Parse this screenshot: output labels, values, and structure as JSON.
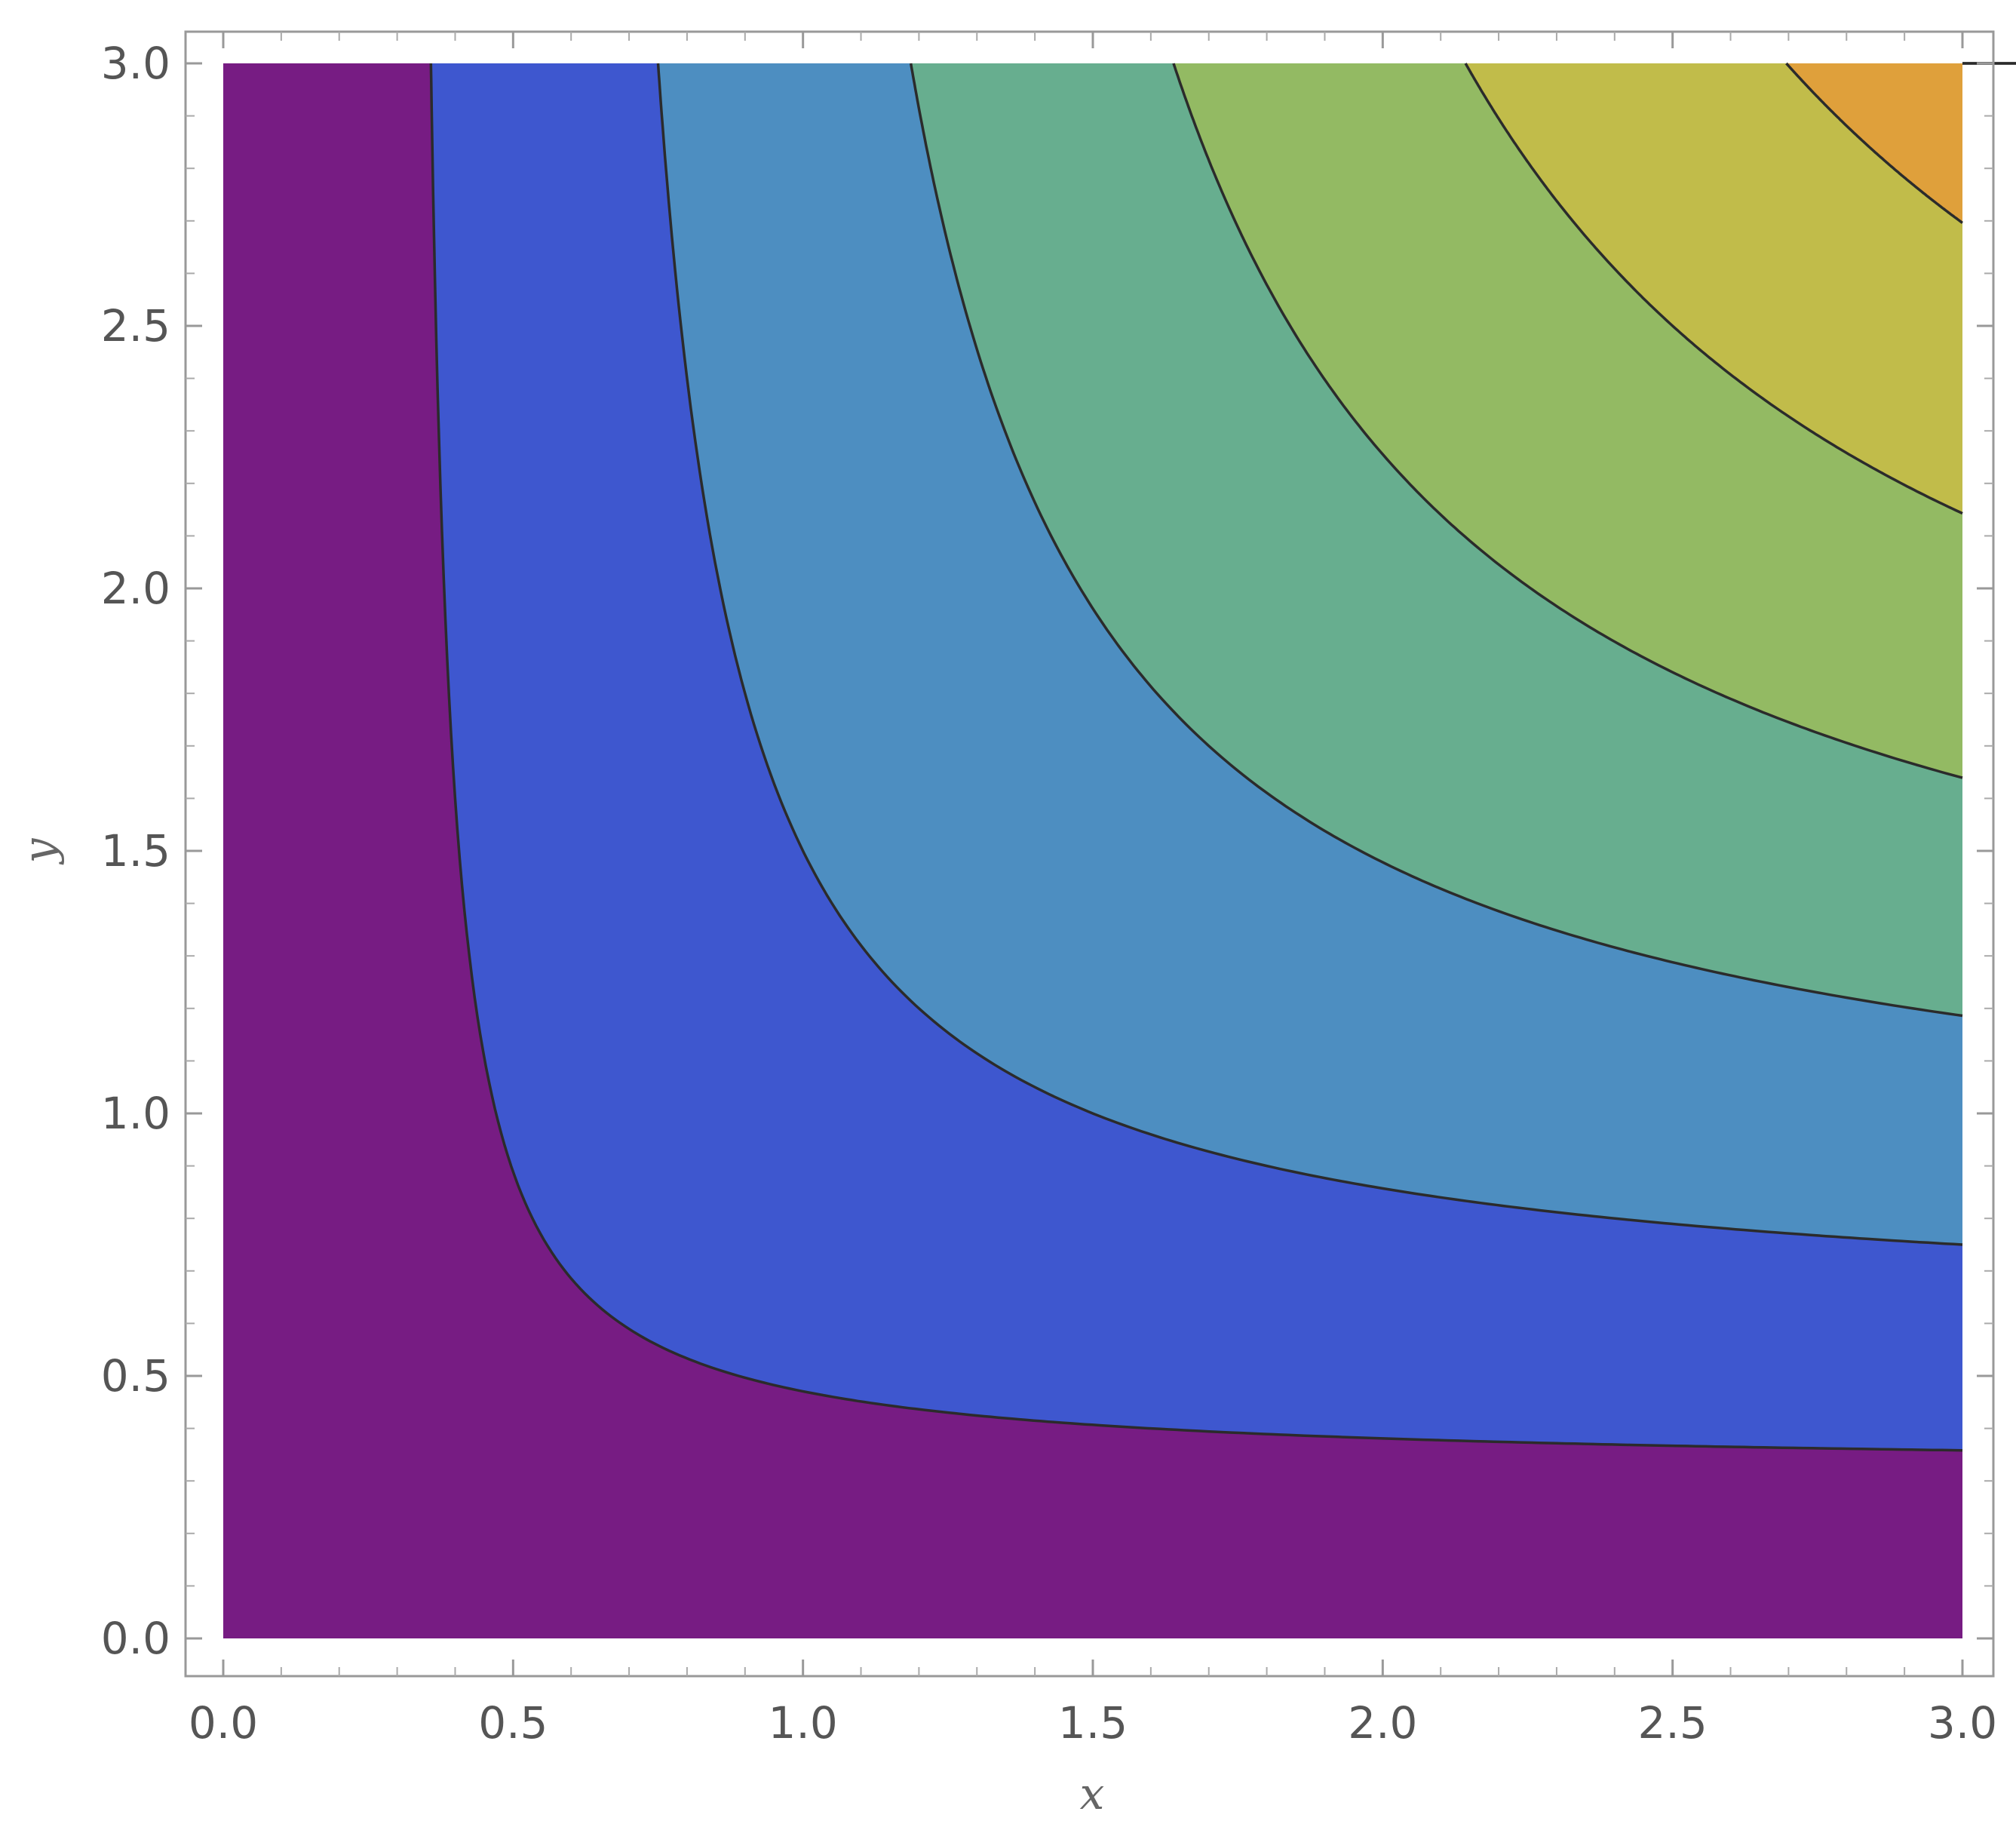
{
  "chart_data": {
    "type": "contour",
    "title": "",
    "xlabel": "x",
    "ylabel": "y",
    "xlim": [
      0,
      3
    ],
    "ylim": [
      0,
      3
    ],
    "x_ticks": [
      "0.0",
      "0.5",
      "1.0",
      "1.5",
      "2.0",
      "2.5",
      "3.0"
    ],
    "y_ticks": [
      "0.0",
      "0.5",
      "1.0",
      "1.5",
      "2.0",
      "2.5",
      "3.0"
    ],
    "function_shape": "contours of x*y/(x+y) (hyperbolic level curves)",
    "contour_levels": [
      0.32,
      0.6,
      0.85,
      1.06,
      1.25,
      1.42,
      1.57,
      1.7
    ],
    "level_reference_points": [
      {
        "level": 1,
        "x": 0.36,
        "y": 3.0
      },
      {
        "level": 2,
        "x": 0.72,
        "y": 3.0
      },
      {
        "level": 3,
        "x": 1.07,
        "y": 3.0
      },
      {
        "level": 4,
        "x": 1.43,
        "y": 3.0
      },
      {
        "level": 5,
        "x": 1.79,
        "y": 3.0
      },
      {
        "level": 6,
        "x": 2.15,
        "y": 3.0
      },
      {
        "level": 7,
        "x": 2.5,
        "y": 3.0
      },
      {
        "level": 8,
        "x": 2.86,
        "y": 3.0
      }
    ],
    "band_colors": [
      "#771c83",
      "#3e57cf",
      "#4d8ec1",
      "#67ae8f",
      "#93ba63",
      "#c1bc4a",
      "#dfa03b",
      "#e3672f",
      "#da2329"
    ],
    "contour_line_color": "#2b2b2b",
    "grid": false,
    "legend": "none"
  }
}
